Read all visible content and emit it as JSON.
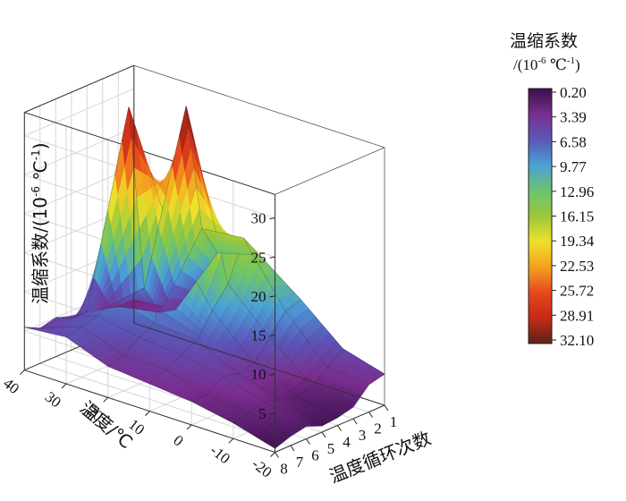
{
  "chart_data": {
    "type": "surface",
    "title": "",
    "zlabel": "温缩系数/(10-6 ℃-1)",
    "zlabel_parts": {
      "main": "温缩系数/(10",
      "exp1": "-6",
      "unit": " ℃",
      "exp2": "-1",
      "close": ")"
    },
    "xlabel": "温度/℃",
    "ylabel": "温度循环次数",
    "x_ticks": [
      "-20",
      "-10",
      "0",
      "10",
      "20",
      "30",
      "40"
    ],
    "y_ticks": [
      "1",
      "2",
      "3",
      "4",
      "5",
      "6",
      "7",
      "8"
    ],
    "z_ticks": [
      "5",
      "10",
      "15",
      "20",
      "25",
      "30"
    ],
    "temperatures": [
      -20,
      -10,
      0,
      10,
      20,
      30,
      40
    ],
    "cycles": [
      1,
      2,
      3,
      4,
      5,
      6,
      7,
      8
    ],
    "zlim": [
      0,
      33
    ],
    "values": [
      [
        4.0,
        3.5,
        1.5,
        1.0,
        0.8,
        1.6,
        1.2,
        0.5
      ],
      [
        5.5,
        4.0,
        2.5,
        2.0,
        2.5,
        3.0,
        2.5,
        2.0
      ],
      [
        10.0,
        9.5,
        7.0,
        4.5,
        4.0,
        4.5,
        3.0,
        3.0
      ],
      [
        14.0,
        17.0,
        12.0,
        9.5,
        6.5,
        5.5,
        4.5,
        3.5
      ],
      [
        12.5,
        16.5,
        33.0,
        17.5,
        7.0,
        6.0,
        4.5,
        4.0
      ],
      [
        3.5,
        4.0,
        8.0,
        32.0,
        8.5,
        7.0,
        6.5,
        6.0
      ],
      [
        3.0,
        3.0,
        3.5,
        4.0,
        4.0,
        5.0,
        4.5,
        5.5
      ]
    ],
    "colorbar": {
      "title": "温缩系数",
      "subtitle_parts": {
        "open": "/(10",
        "exp1": "-6",
        "unit": " ℃",
        "exp2": "-1",
        "close": ")"
      },
      "ticks": [
        "0.20",
        "3.39",
        "6.58",
        "9.77",
        "12.96",
        "16.15",
        "19.34",
        "22.53",
        "25.72",
        "28.91",
        "32.10"
      ],
      "colors": [
        "#3a0f4a",
        "#7a2e8f",
        "#5a57b8",
        "#4aa0d6",
        "#6cc36e",
        "#9ac83a",
        "#efe02a",
        "#f2a11f",
        "#e8481c",
        "#c52a18",
        "#5c2318"
      ]
    }
  }
}
